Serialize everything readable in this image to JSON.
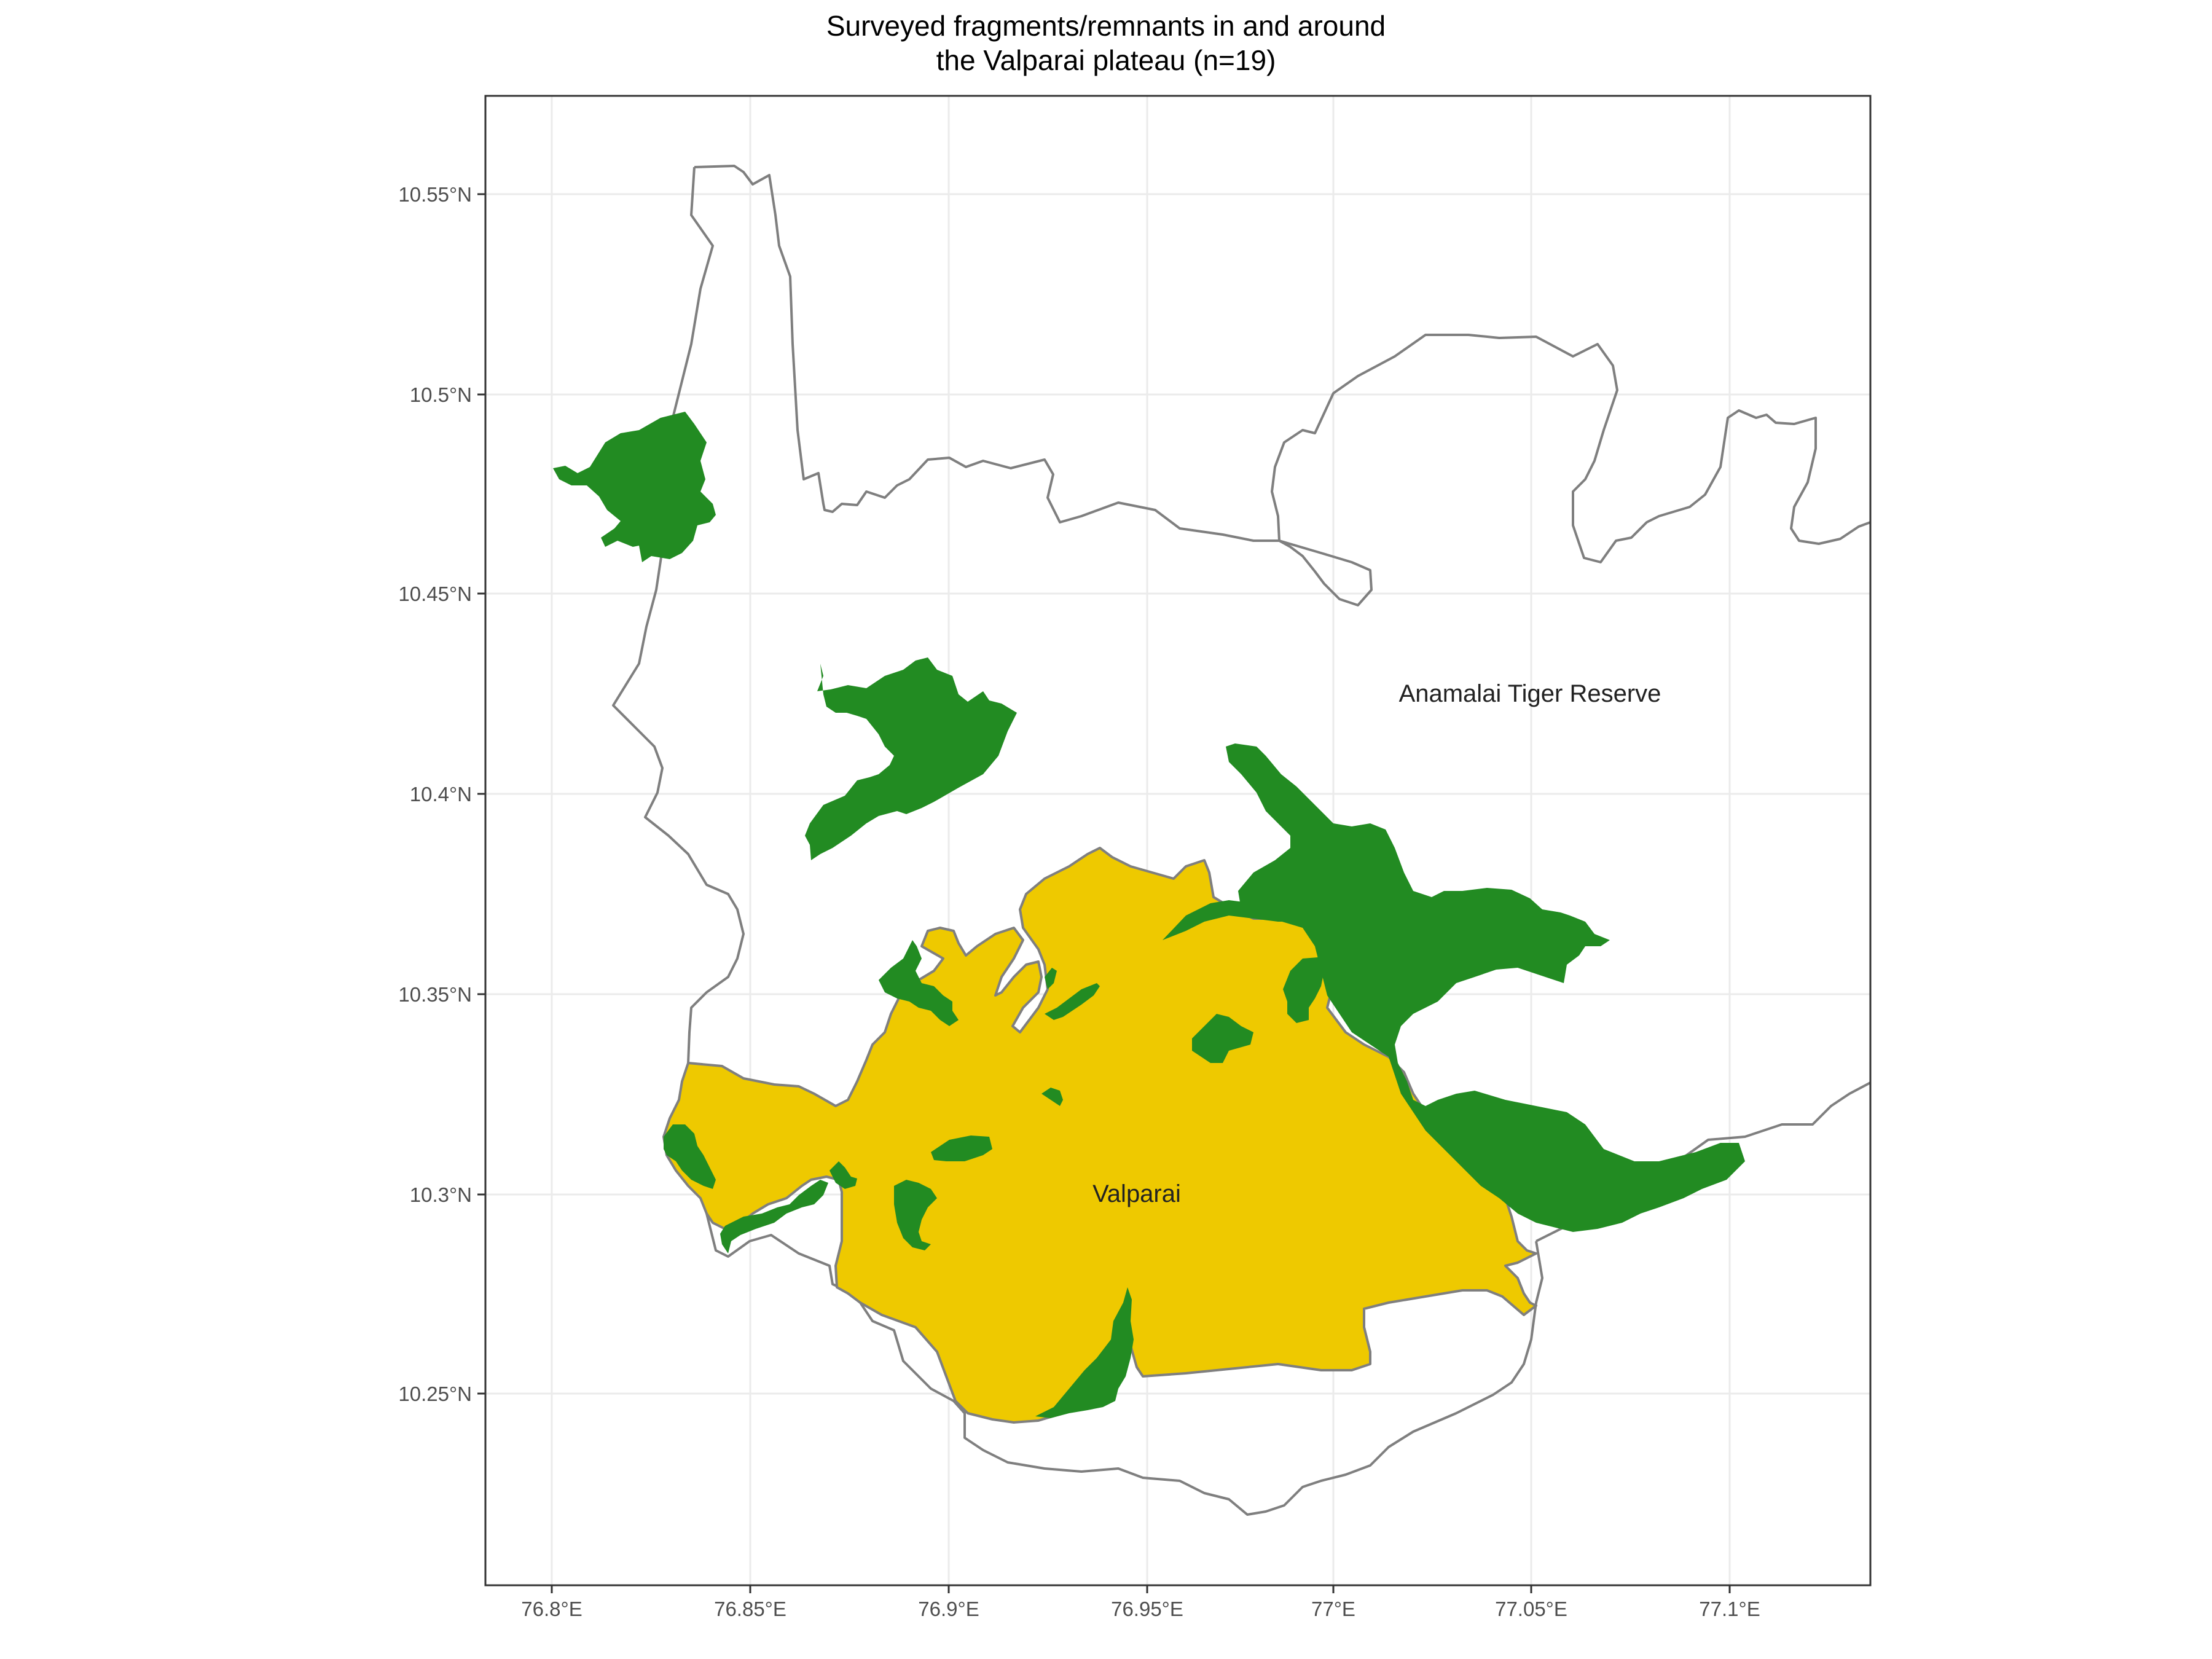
{
  "title": {
    "line1": "Surveyed fragments/remnants in and around",
    "line2": "the Valparai plateau (n=19)"
  },
  "colors": {
    "fragment_fill": "#228b22",
    "valparai_fill": "#eec900",
    "boundary_stroke": "#7f7f7f",
    "panel_border": "#333333",
    "grid": "#ebebeb",
    "background": "#ffffff"
  },
  "labels": {
    "reserve": "Anamalai Tiger Reserve",
    "valparai": "Valparai"
  },
  "x_ticks": [
    "76.8°E",
    "76.85°E",
    "76.9°E",
    "76.95°E",
    "77°E",
    "77.05°E",
    "77.1°E"
  ],
  "y_ticks": [
    "10.55°N",
    "10.5°N",
    "10.45°N",
    "10.4°N",
    "10.35°N",
    "10.3°N",
    "10.25°N"
  ],
  "chart_data": {
    "type": "map",
    "layers": [
      {
        "name": "Anamalai Tiger Reserve",
        "kind": "boundary",
        "fill": "none",
        "stroke": "#7f7f7f"
      },
      {
        "name": "Valparai",
        "kind": "polygon",
        "fill": "#eec900"
      },
      {
        "name": "fragments/remnants",
        "kind": "polygons",
        "count": 19,
        "fill": "#228b22"
      }
    ],
    "x_ticks_deg": [
      76.8,
      76.85,
      76.9,
      76.95,
      77.0,
      77.05,
      77.1
    ],
    "y_ticks_deg": [
      10.55,
      10.5,
      10.45,
      10.4,
      10.35,
      10.3,
      10.25
    ],
    "xlim": [
      76.784,
      77.134
    ],
    "ylim": [
      10.202,
      10.575
    ],
    "grid": true
  }
}
